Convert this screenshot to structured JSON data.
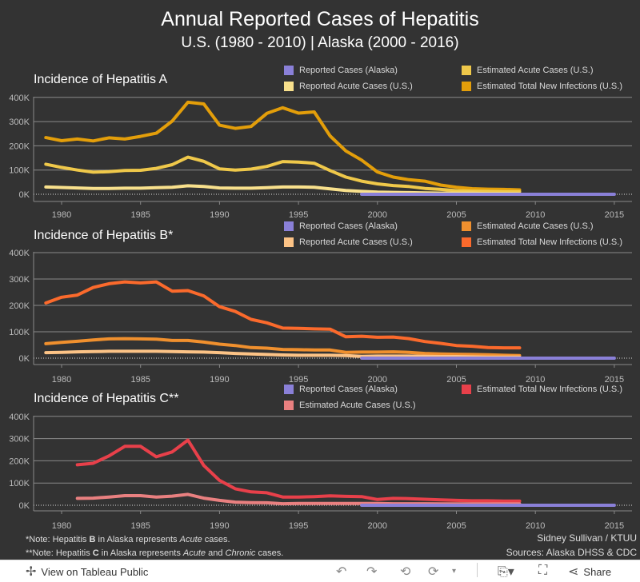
{
  "title": "Annual Reported Cases of Hepatitis",
  "subtitle": "U.S. (1980 - 2010) | Alaska (2000 - 2016)",
  "chart_data": [
    {
      "type": "line",
      "title": "Incidence of Hepatitis A",
      "ylim": [
        0,
        400000
      ],
      "xlim": [
        1978,
        2016
      ],
      "yticks": [
        "0K",
        "100K",
        "200K",
        "300K",
        "400K"
      ],
      "xticks": [
        "1980",
        "1985",
        "1990",
        "1995",
        "2000",
        "2005",
        "2010",
        "2015"
      ],
      "grid": true,
      "legend": [
        {
          "name": "Reported Cases (Alaska)",
          "color": "#8a80d8"
        },
        {
          "name": "Estimated Acute Cases (U.S.)",
          "color": "#efc84a"
        },
        {
          "name": "Reported Acute Cases (U.S.)",
          "color": "#f8e08c"
        },
        {
          "name": "Estimated Total New Infections (U.S.)",
          "color": "#e39e0a"
        }
      ],
      "series": [
        {
          "name": "Estimated Total New Infections (U.S.)",
          "color": "#e39e0a",
          "start": 1979,
          "values": [
            234,
            221,
            228,
            220,
            233,
            228,
            239,
            252,
            302,
            380,
            373,
            285,
            272,
            280,
            334,
            357,
            335,
            340,
            241,
            179,
            141,
            92,
            71,
            60,
            54,
            38,
            29,
            23,
            21,
            20,
            18
          ]
        },
        {
          "name": "Estimated Acute Cases (U.S.)",
          "color": "#efc84a",
          "start": 1979,
          "values": [
            124,
            111,
            100,
            91,
            93,
            98,
            99,
            107,
            122,
            153,
            136,
            105,
            100,
            104,
            115,
            135,
            133,
            128,
            98,
            71,
            54,
            43,
            36,
            32,
            24,
            20,
            15,
            13,
            12,
            11,
            11
          ]
        },
        {
          "name": "Reported Acute Cases (U.S.)",
          "color": "#f8e08c",
          "start": 1979,
          "values": [
            30,
            28,
            26,
            24,
            24,
            25,
            25,
            27,
            29,
            35,
            32,
            26,
            25,
            25,
            27,
            30,
            30,
            29,
            22,
            16,
            12,
            9,
            8,
            7,
            6,
            5,
            4,
            4,
            3,
            3,
            2
          ]
        },
        {
          "name": "Reported Cases (Alaska)",
          "color": "#8a80d8",
          "start": 1999,
          "values": [
            0,
            0,
            0,
            0,
            0,
            0,
            0,
            0,
            0,
            0,
            0,
            0,
            0,
            0,
            0,
            0,
            0
          ]
        }
      ],
      "units": "thousands"
    },
    {
      "type": "line",
      "title": "Incidence of Hepatitis B*",
      "ylim": [
        0,
        400000
      ],
      "xlim": [
        1978,
        2016
      ],
      "yticks": [
        "0K",
        "100K",
        "200K",
        "300K",
        "400K"
      ],
      "xticks": [
        "1980",
        "1985",
        "1990",
        "1995",
        "2000",
        "2005",
        "2010",
        "2015"
      ],
      "grid": true,
      "legend": [
        {
          "name": "Reported Cases (Alaska)",
          "color": "#8a80d8"
        },
        {
          "name": "Estimated Acute Cases (U.S.)",
          "color": "#f0902e"
        },
        {
          "name": "Reported Acute Cases (U.S.)",
          "color": "#fcc386"
        },
        {
          "name": "Estimated Total New Infections (U.S.)",
          "color": "#fb6a2c"
        }
      ],
      "series": [
        {
          "name": "Estimated Total New Infections (U.S.)",
          "color": "#fb6a2c",
          "start": 1979,
          "values": [
            209,
            231,
            239,
            268,
            282,
            289,
            285,
            289,
            254,
            256,
            236,
            195,
            177,
            147,
            134,
            114,
            113,
            111,
            110,
            81,
            83,
            79,
            80,
            74,
            63,
            56,
            48,
            45,
            40,
            39,
            39
          ]
        },
        {
          "name": "Estimated Acute Cases (U.S.)",
          "color": "#f0902e",
          "start": 1979,
          "values": [
            55,
            60,
            64,
            69,
            73,
            74,
            73,
            72,
            67,
            67,
            61,
            53,
            48,
            40,
            38,
            33,
            32,
            31,
            31,
            22,
            23,
            23,
            24,
            22,
            18,
            16,
            15,
            14,
            13,
            11,
            10
          ]
        },
        {
          "name": "Reported Acute Cases (U.S.)",
          "color": "#fcc386",
          "start": 1979,
          "values": [
            21,
            22,
            24,
            25,
            26,
            26,
            26,
            26,
            25,
            24,
            23,
            21,
            18,
            16,
            14,
            12,
            11,
            11,
            11,
            10,
            7,
            8,
            8,
            8,
            7,
            6,
            6,
            5,
            4,
            4,
            4
          ]
        },
        {
          "name": "Reported Cases (Alaska)",
          "color": "#8a80d8",
          "start": 1999,
          "values": [
            0,
            0,
            0,
            0,
            0,
            0,
            0,
            0,
            0,
            0,
            0,
            0,
            0,
            0,
            0,
            0,
            0
          ]
        }
      ],
      "units": "thousands"
    },
    {
      "type": "line",
      "title": "Incidence of Hepatitis C**",
      "ylim": [
        0,
        400000
      ],
      "xlim": [
        1978,
        2016
      ],
      "yticks": [
        "0K",
        "100K",
        "200K",
        "300K",
        "400K"
      ],
      "xticks": [
        "1980",
        "1985",
        "1990",
        "1995",
        "2000",
        "2005",
        "2010",
        "2015"
      ],
      "grid": true,
      "legend": [
        {
          "name": "Reported Cases (Alaska)",
          "color": "#8a80d8"
        },
        {
          "name": "Estimated Total New Infections (U.S.)",
          "color": "#e8404a"
        },
        {
          "name": "Estimated Acute Cases (U.S.)",
          "color": "#e98080"
        }
      ],
      "series": [
        {
          "name": "Estimated Total New Infections (U.S.)",
          "color": "#e8404a",
          "start": 1981,
          "values": [
            182,
            189,
            222,
            265,
            265,
            218,
            240,
            293,
            179,
            112,
            74,
            60,
            56,
            37,
            37,
            39,
            42,
            40,
            39,
            26,
            31,
            30,
            27,
            24,
            22,
            20,
            20,
            19,
            19
          ]
        },
        {
          "name": "Estimated Acute Cases (U.S.)",
          "color": "#e98080",
          "start": 1981,
          "values": [
            31,
            32,
            37,
            43,
            43,
            37,
            41,
            49,
            32,
            22,
            14,
            12,
            11,
            7,
            8,
            8,
            8,
            8,
            8,
            8,
            7,
            7,
            7,
            6,
            6,
            6,
            6,
            6,
            6
          ]
        },
        {
          "name": "Reported Cases (Alaska)",
          "color": "#8a80d8",
          "start": 1999,
          "values": [
            0,
            0,
            0,
            0,
            0,
            0,
            0,
            0,
            0,
            0,
            0,
            0,
            0,
            0,
            0,
            0,
            0
          ]
        }
      ],
      "units": "thousands"
    }
  ],
  "notes": {
    "b_prefix": "*Note: Hepatitis ",
    "b_letter": "B",
    "b_mid": " in Alaska represents ",
    "b_it": "Acute",
    "b_end": " cases.",
    "c_prefix": "**Note: Hepatitis ",
    "c_letter": "C",
    "c_mid": " in Alaska represents ",
    "c_it1": "Acute",
    "c_and": " and ",
    "c_it2": "Chronic",
    "c_end": " cases."
  },
  "credit": {
    "author": "Sidney Sullivan / KTUU",
    "sources": "Sources: Alaska DHSS & CDC"
  },
  "footer": {
    "view_label": "View on Tableau Public",
    "share_label": "Share"
  }
}
